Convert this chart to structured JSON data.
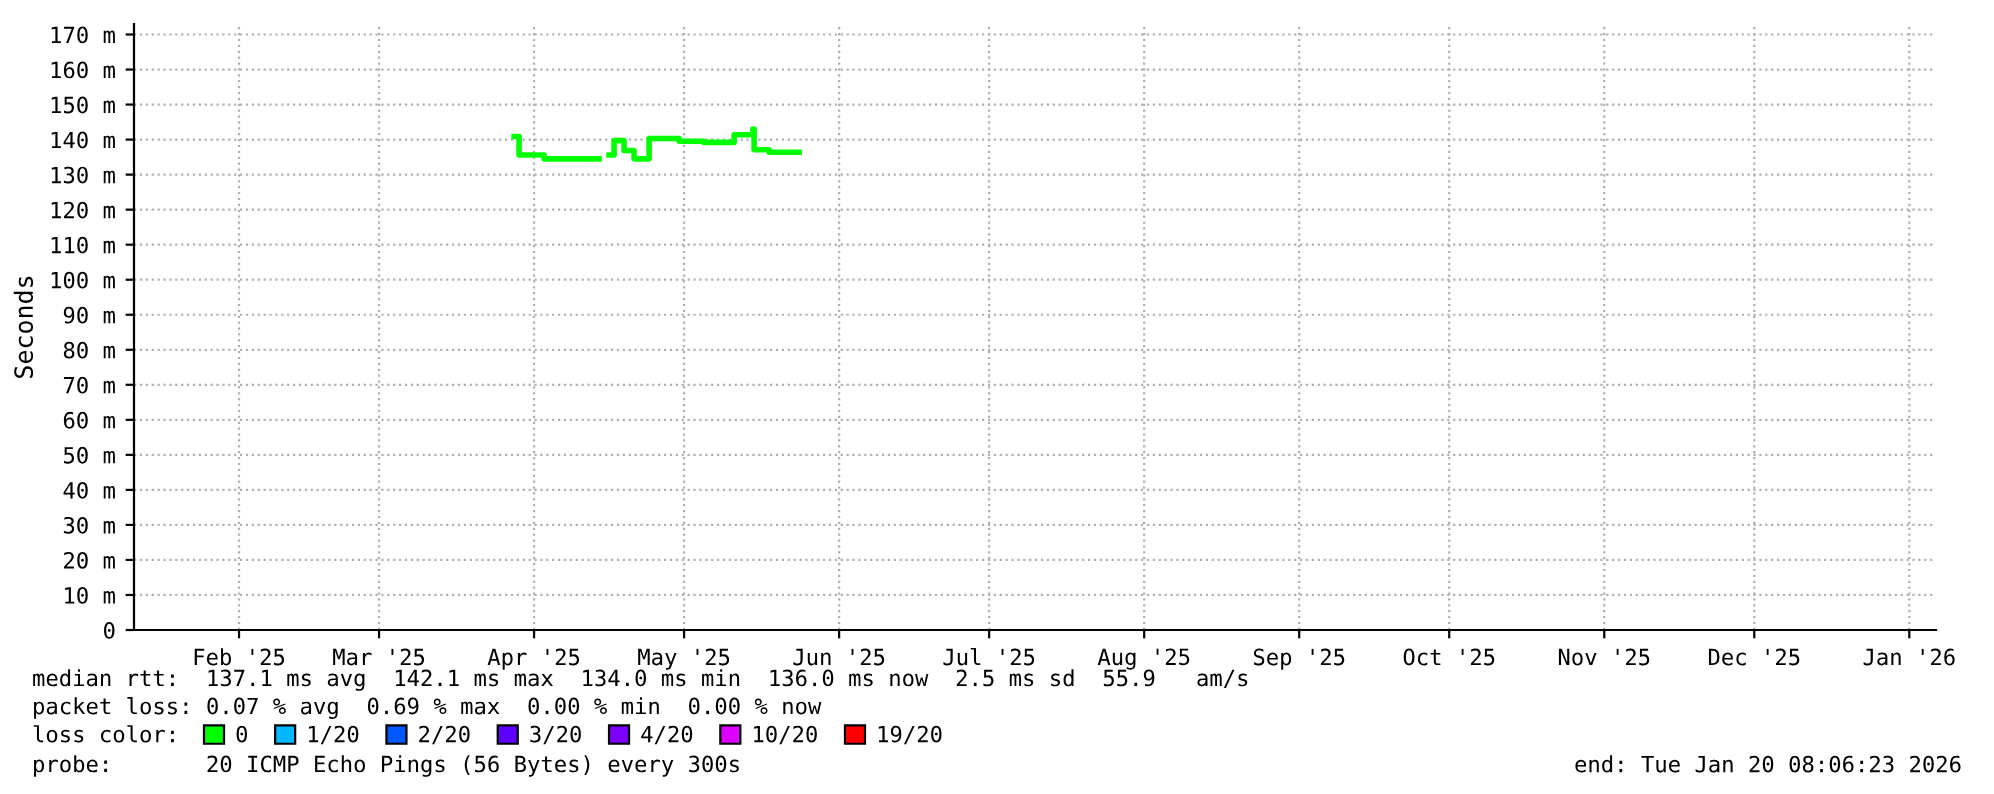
{
  "chart_data": {
    "type": "step",
    "ylabel": "Seconds",
    "x": [
      "2025-04-11",
      "2025-04-12",
      "2025-04-17",
      "2025-04-26",
      "2025-04-28",
      "2025-04-30",
      "2025-05-01",
      "2025-05-03",
      "2025-05-05",
      "2025-05-08",
      "2025-05-14",
      "2025-05-19",
      "2025-05-25",
      "2025-05-28T18:00",
      "2025-05-29",
      "2025-06-01",
      "2025-06-07"
    ],
    "series": [
      {
        "name": "0",
        "color": "#00ff00",
        "values": [
          140.9,
          135.6,
          134.5,
          134.5,
          null,
          135.6,
          139.7,
          136.9,
          134.5,
          140.3,
          139.5,
          139.2,
          141.4,
          143,
          137.1,
          136.4,
          136.4
        ]
      },
      {
        "name": "1/20",
        "color": "#00b8ff",
        "values": [
          null,
          null,
          null,
          null,
          null,
          null,
          null,
          null,
          null,
          null,
          null,
          null,
          null,
          null,
          null,
          null,
          null
        ]
      },
      {
        "name": "2/20",
        "color": "#0059ff",
        "values": [
          null,
          null,
          null,
          null,
          null,
          null,
          null,
          null,
          null,
          null,
          null,
          null,
          null,
          null,
          null,
          null,
          null
        ]
      },
      {
        "name": "3/20",
        "color": "#5e00ff",
        "values": [
          null,
          null,
          null,
          null,
          null,
          null,
          null,
          null,
          null,
          null,
          null,
          null,
          null,
          null,
          null,
          null,
          null
        ]
      },
      {
        "name": "4/20",
        "color": "#7e00ff",
        "values": [
          null,
          null,
          null,
          null,
          null,
          null,
          null,
          null,
          null,
          null,
          null,
          null,
          null,
          null,
          null,
          null,
          null
        ]
      },
      {
        "name": "10/20",
        "color": "#dd00ff",
        "values": [
          null,
          null,
          null,
          null,
          null,
          null,
          null,
          null,
          null,
          null,
          null,
          null,
          null,
          null,
          null,
          null,
          null
        ]
      },
      {
        "name": "19/20",
        "color": "#ff0000",
        "values": [
          null,
          null,
          null,
          null,
          null,
          null,
          null,
          null,
          null,
          null,
          null,
          null,
          null,
          null,
          null,
          null,
          null
        ]
      }
    ],
    "legend_title": "loss color:",
    "legend": "bottom",
    "grid": true,
    "xlim": [
      "2025-01-25",
      "2026-01-20T08:06"
    ],
    "xticks": [
      {
        "value": "2025-02-15",
        "label": "Feb '25"
      },
      {
        "value": "2025-03-15",
        "label": "Mar '25"
      },
      {
        "value": "2025-04-15",
        "label": "Apr '25"
      },
      {
        "value": "2025-05-15",
        "label": "May '25"
      },
      {
        "value": "2025-06-15",
        "label": "Jun '25"
      },
      {
        "value": "2025-07-15",
        "label": "Jul '25"
      },
      {
        "value": "2025-08-15",
        "label": "Aug '25"
      },
      {
        "value": "2025-09-15",
        "label": "Sep '25"
      },
      {
        "value": "2025-10-15",
        "label": "Oct '25"
      },
      {
        "value": "2025-11-15",
        "label": "Nov '25"
      },
      {
        "value": "2025-12-15",
        "label": "Dec '25"
      },
      {
        "value": "2026-01-15",
        "label": "Jan '26"
      }
    ],
    "ylim": [
      0,
      173
    ],
    "yticks": [
      0,
      {
        "value": 10,
        "label": "10 m"
      },
      {
        "value": 20,
        "label": "20 m"
      },
      {
        "value": 30,
        "label": "30 m"
      },
      {
        "value": 40,
        "label": "40 m"
      },
      {
        "value": 50,
        "label": "50 m"
      },
      {
        "value": 60,
        "label": "60 m"
      },
      {
        "value": 70,
        "label": "70 m"
      },
      {
        "value": 80,
        "label": "80 m"
      },
      {
        "value": 90,
        "label": "90 m"
      },
      {
        "value": 100,
        "label": "100 m"
      },
      {
        "value": 110,
        "label": "110 m"
      },
      {
        "value": 120,
        "label": "120 m"
      },
      {
        "value": 130,
        "label": "130 m"
      },
      {
        "value": 140,
        "label": "140 m"
      },
      {
        "value": 150,
        "label": "150 m"
      },
      {
        "value": 160,
        "label": "160 m"
      },
      {
        "value": 170,
        "label": "170 m"
      }
    ],
    "annotations": [
      "median rtt:  137.1 ms avg  142.1 ms max  134.0 ms min  136.0 ms now  2.5 ms sd  55.9   am/s",
      "packet loss: 0.07 % avg  0.69 % max  0.00 % min  0.00 % now",
      "probe:       20 ICMP Echo Pings (56 Bytes) every 300s",
      "end: Tue Jan 20 08:06:23 2026"
    ]
  }
}
